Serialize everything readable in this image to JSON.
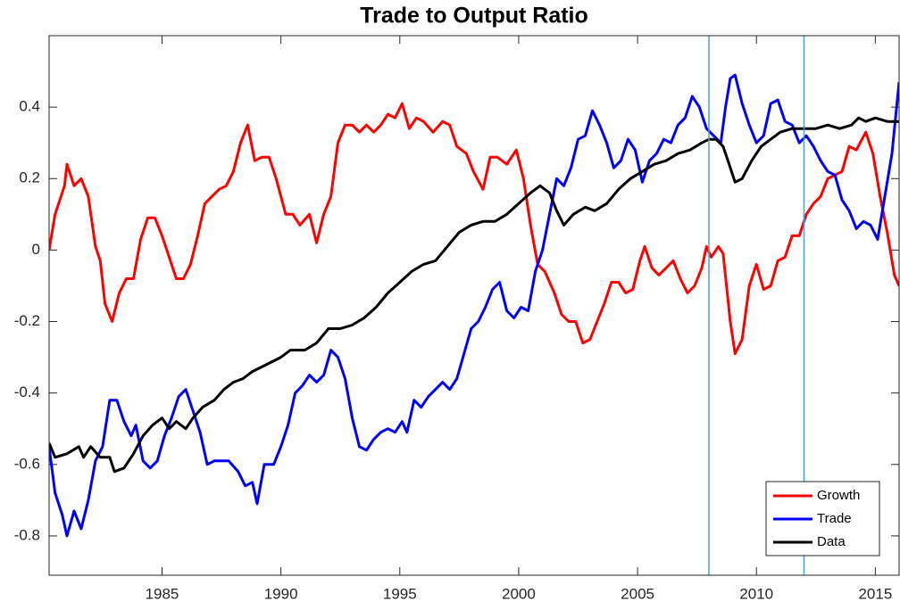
{
  "chart_data": {
    "type": "line",
    "title": "Trade to Output Ratio",
    "xlim": [
      1980.25,
      2016
    ],
    "ylim": [
      -0.91,
      0.6
    ],
    "xticks": [
      1985,
      1990,
      1995,
      2000,
      2005,
      2010,
      2015
    ],
    "yticks": [
      -0.8,
      -0.6,
      -0.4,
      -0.2,
      0,
      0.2,
      0.4
    ],
    "vlines": [
      2008,
      2012
    ],
    "vline_color": "#4d9fcf",
    "legend": "southeast",
    "series": [
      {
        "name": "Growth",
        "color": "#ff0000",
        "x": [
          1980.25,
          1980.5,
          1980.9,
          1981.0,
          1981.3,
          1981.6,
          1981.9,
          1982.2,
          1982.4,
          1982.6,
          1982.9,
          1983.2,
          1983.5,
          1983.8,
          1984.1,
          1984.4,
          1984.7,
          1985.0,
          1985.3,
          1985.6,
          1985.9,
          1986.2,
          1986.5,
          1986.8,
          1987.1,
          1987.4,
          1987.7,
          1988.0,
          1988.3,
          1988.6,
          1988.9,
          1989.2,
          1989.5,
          1989.8,
          1990.2,
          1990.5,
          1990.8,
          1991.2,
          1991.5,
          1991.8,
          1992.1,
          1992.4,
          1992.7,
          1993.0,
          1993.3,
          1993.6,
          1993.9,
          1994.2,
          1994.5,
          1994.8,
          1995.1,
          1995.4,
          1995.7,
          1996.0,
          1996.4,
          1996.8,
          1997.1,
          1997.4,
          1997.8,
          1998.1,
          1998.5,
          1998.8,
          1999.1,
          1999.5,
          1999.9,
          2000.2,
          2000.5,
          2000.8,
          2001.1,
          2001.5,
          2001.8,
          2002.1,
          2002.4,
          2002.7,
          2003.0,
          2003.3,
          2003.6,
          2003.9,
          2004.2,
          2004.5,
          2004.8,
          2005.1,
          2005.3,
          2005.6,
          2005.9,
          2006.2,
          2006.5,
          2006.8,
          2007.1,
          2007.4,
          2007.7,
          2007.9,
          2008.1,
          2008.4,
          2008.6,
          2008.9,
          2009.1,
          2009.4,
          2009.7,
          2010.0,
          2010.3,
          2010.6,
          2010.9,
          2011.2,
          2011.5,
          2011.8,
          2012.1,
          2012.4,
          2012.7,
          2013.0,
          2013.3,
          2013.6,
          2013.9,
          2014.2,
          2014.6,
          2014.9,
          2015.2,
          2015.5,
          2015.8,
          2016.0
        ],
        "values": [
          0,
          0.1,
          0.18,
          0.24,
          0.18,
          0.2,
          0.15,
          0.01,
          -0.03,
          -0.15,
          -0.2,
          -0.12,
          -0.08,
          -0.08,
          0.03,
          0.09,
          0.09,
          0.04,
          -0.02,
          -0.08,
          -0.08,
          -0.04,
          0.04,
          0.13,
          0.15,
          0.17,
          0.18,
          0.22,
          0.3,
          0.35,
          0.25,
          0.26,
          0.26,
          0.2,
          0.1,
          0.1,
          0.07,
          0.1,
          0.02,
          0.1,
          0.15,
          0.3,
          0.35,
          0.35,
          0.33,
          0.35,
          0.33,
          0.35,
          0.38,
          0.37,
          0.41,
          0.34,
          0.37,
          0.36,
          0.33,
          0.36,
          0.35,
          0.29,
          0.27,
          0.22,
          0.17,
          0.26,
          0.26,
          0.24,
          0.28,
          0.2,
          0.07,
          -0.04,
          -0.06,
          -0.12,
          -0.18,
          -0.2,
          -0.2,
          -0.26,
          -0.25,
          -0.2,
          -0.15,
          -0.09,
          -0.09,
          -0.12,
          -0.11,
          -0.03,
          0.01,
          -0.05,
          -0.07,
          -0.05,
          -0.03,
          -0.08,
          -0.12,
          -0.1,
          -0.05,
          0.01,
          -0.02,
          0.01,
          -0.01,
          -0.2,
          -0.29,
          -0.25,
          -0.1,
          -0.04,
          -0.11,
          -0.1,
          -0.03,
          -0.02,
          0.04,
          0.04,
          0.1,
          0.13,
          0.15,
          0.2,
          0.21,
          0.22,
          0.29,
          0.28,
          0.33,
          0.27,
          0.15,
          0.05,
          -0.07,
          -0.1
        ]
      },
      {
        "name": "Trade",
        "color": "#0000ff",
        "x": [
          1980.25,
          1980.5,
          1980.8,
          1981.0,
          1981.3,
          1981.6,
          1981.9,
          1982.2,
          1982.5,
          1982.8,
          1983.1,
          1983.4,
          1983.7,
          1983.9,
          1984.2,
          1984.5,
          1984.8,
          1985.1,
          1985.4,
          1985.7,
          1986.0,
          1986.3,
          1986.6,
          1986.9,
          1987.2,
          1987.5,
          1987.8,
          1988.2,
          1988.5,
          1988.8,
          1989.0,
          1989.3,
          1989.7,
          1990.0,
          1990.3,
          1990.6,
          1990.9,
          1991.2,
          1991.5,
          1991.8,
          1992.1,
          1992.4,
          1992.7,
          1993.0,
          1993.3,
          1993.6,
          1993.9,
          1994.2,
          1994.5,
          1994.8,
          1995.1,
          1995.3,
          1995.6,
          1995.9,
          1996.2,
          1996.5,
          1996.8,
          1997.1,
          1997.4,
          1997.7,
          1998.0,
          1998.3,
          1998.6,
          1998.9,
          1999.2,
          1999.5,
          1999.8,
          2000.1,
          2000.4,
          2000.7,
          2001.0,
          2001.3,
          2001.6,
          2001.9,
          2002.2,
          2002.5,
          2002.8,
          2003.1,
          2003.4,
          2003.7,
          2004.0,
          2004.3,
          2004.6,
          2004.9,
          2005.2,
          2005.5,
          2005.8,
          2006.1,
          2006.4,
          2006.7,
          2007.0,
          2007.3,
          2007.6,
          2007.9,
          2008.2,
          2008.5,
          2008.7,
          2008.9,
          2009.1,
          2009.4,
          2009.7,
          2010.0,
          2010.3,
          2010.6,
          2010.9,
          2011.2,
          2011.5,
          2011.8,
          2012.1,
          2012.4,
          2012.7,
          2013.0,
          2013.3,
          2013.6,
          2013.9,
          2014.2,
          2014.5,
          2014.8,
          2015.1,
          2015.4,
          2015.7,
          2016.0
        ],
        "values": [
          -0.55,
          -0.68,
          -0.74,
          -0.8,
          -0.73,
          -0.78,
          -0.7,
          -0.59,
          -0.55,
          -0.42,
          -0.42,
          -0.48,
          -0.52,
          -0.49,
          -0.59,
          -0.61,
          -0.59,
          -0.52,
          -0.47,
          -0.41,
          -0.39,
          -0.45,
          -0.51,
          -0.6,
          -0.59,
          -0.59,
          -0.59,
          -0.62,
          -0.66,
          -0.65,
          -0.71,
          -0.6,
          -0.6,
          -0.55,
          -0.49,
          -0.4,
          -0.38,
          -0.35,
          -0.37,
          -0.35,
          -0.28,
          -0.3,
          -0.36,
          -0.47,
          -0.55,
          -0.56,
          -0.53,
          -0.51,
          -0.5,
          -0.51,
          -0.48,
          -0.51,
          -0.42,
          -0.44,
          -0.41,
          -0.39,
          -0.37,
          -0.39,
          -0.36,
          -0.29,
          -0.22,
          -0.2,
          -0.16,
          -0.11,
          -0.09,
          -0.17,
          -0.19,
          -0.16,
          -0.17,
          -0.06,
          0.0,
          0.1,
          0.2,
          0.18,
          0.23,
          0.31,
          0.32,
          0.39,
          0.35,
          0.3,
          0.23,
          0.25,
          0.31,
          0.28,
          0.19,
          0.25,
          0.27,
          0.31,
          0.3,
          0.35,
          0.37,
          0.43,
          0.4,
          0.34,
          0.32,
          0.3,
          0.4,
          0.48,
          0.49,
          0.41,
          0.35,
          0.3,
          0.32,
          0.41,
          0.42,
          0.36,
          0.35,
          0.3,
          0.32,
          0.29,
          0.25,
          0.22,
          0.21,
          0.14,
          0.11,
          0.06,
          0.08,
          0.07,
          0.03,
          0.15,
          0.27,
          0.47
        ]
      },
      {
        "name": "Data",
        "color": "#000000",
        "x": [
          1980.25,
          1980.5,
          1981.0,
          1981.5,
          1981.7,
          1982.0,
          1982.4,
          1982.8,
          1983.0,
          1983.4,
          1983.8,
          1984.2,
          1984.6,
          1985.0,
          1985.3,
          1985.6,
          1986.0,
          1986.3,
          1986.7,
          1987.2,
          1987.6,
          1988.0,
          1988.4,
          1988.8,
          1989.4,
          1990.0,
          1990.4,
          1991.0,
          1991.5,
          1992.0,
          1992.5,
          1993.0,
          1993.5,
          1994.0,
          1994.5,
          1995.0,
          1995.5,
          1996.0,
          1996.5,
          1997.0,
          1997.5,
          1998.0,
          1998.5,
          1999.0,
          1999.5,
          2000.0,
          2000.5,
          2000.9,
          2001.3,
          2001.6,
          2001.9,
          2002.3,
          2002.8,
          2003.2,
          2003.7,
          2004.2,
          2004.7,
          2005.2,
          2005.7,
          2006.2,
          2006.7,
          2007.2,
          2007.7,
          2008.0,
          2008.3,
          2008.6,
          2008.8,
          2009.1,
          2009.4,
          2009.8,
          2010.2,
          2010.6,
          2011.0,
          2011.5,
          2012.0,
          2012.5,
          2013.0,
          2013.5,
          2014.0,
          2014.3,
          2014.6,
          2015.0,
          2015.5,
          2016.0
        ],
        "values": [
          -0.54,
          -0.58,
          -0.57,
          -0.55,
          -0.58,
          -0.55,
          -0.58,
          -0.58,
          -0.62,
          -0.61,
          -0.57,
          -0.52,
          -0.49,
          -0.47,
          -0.5,
          -0.48,
          -0.5,
          -0.47,
          -0.44,
          -0.42,
          -0.39,
          -0.37,
          -0.36,
          -0.34,
          -0.32,
          -0.3,
          -0.28,
          -0.28,
          -0.26,
          -0.22,
          -0.22,
          -0.21,
          -0.19,
          -0.16,
          -0.12,
          -0.09,
          -0.06,
          -0.04,
          -0.03,
          0.01,
          0.05,
          0.07,
          0.08,
          0.08,
          0.1,
          0.13,
          0.16,
          0.18,
          0.16,
          0.11,
          0.07,
          0.1,
          0.12,
          0.11,
          0.13,
          0.17,
          0.2,
          0.22,
          0.24,
          0.25,
          0.27,
          0.28,
          0.3,
          0.31,
          0.31,
          0.29,
          0.25,
          0.19,
          0.2,
          0.25,
          0.29,
          0.31,
          0.33,
          0.34,
          0.34,
          0.34,
          0.35,
          0.34,
          0.35,
          0.37,
          0.36,
          0.37,
          0.36,
          0.36
        ]
      }
    ]
  }
}
